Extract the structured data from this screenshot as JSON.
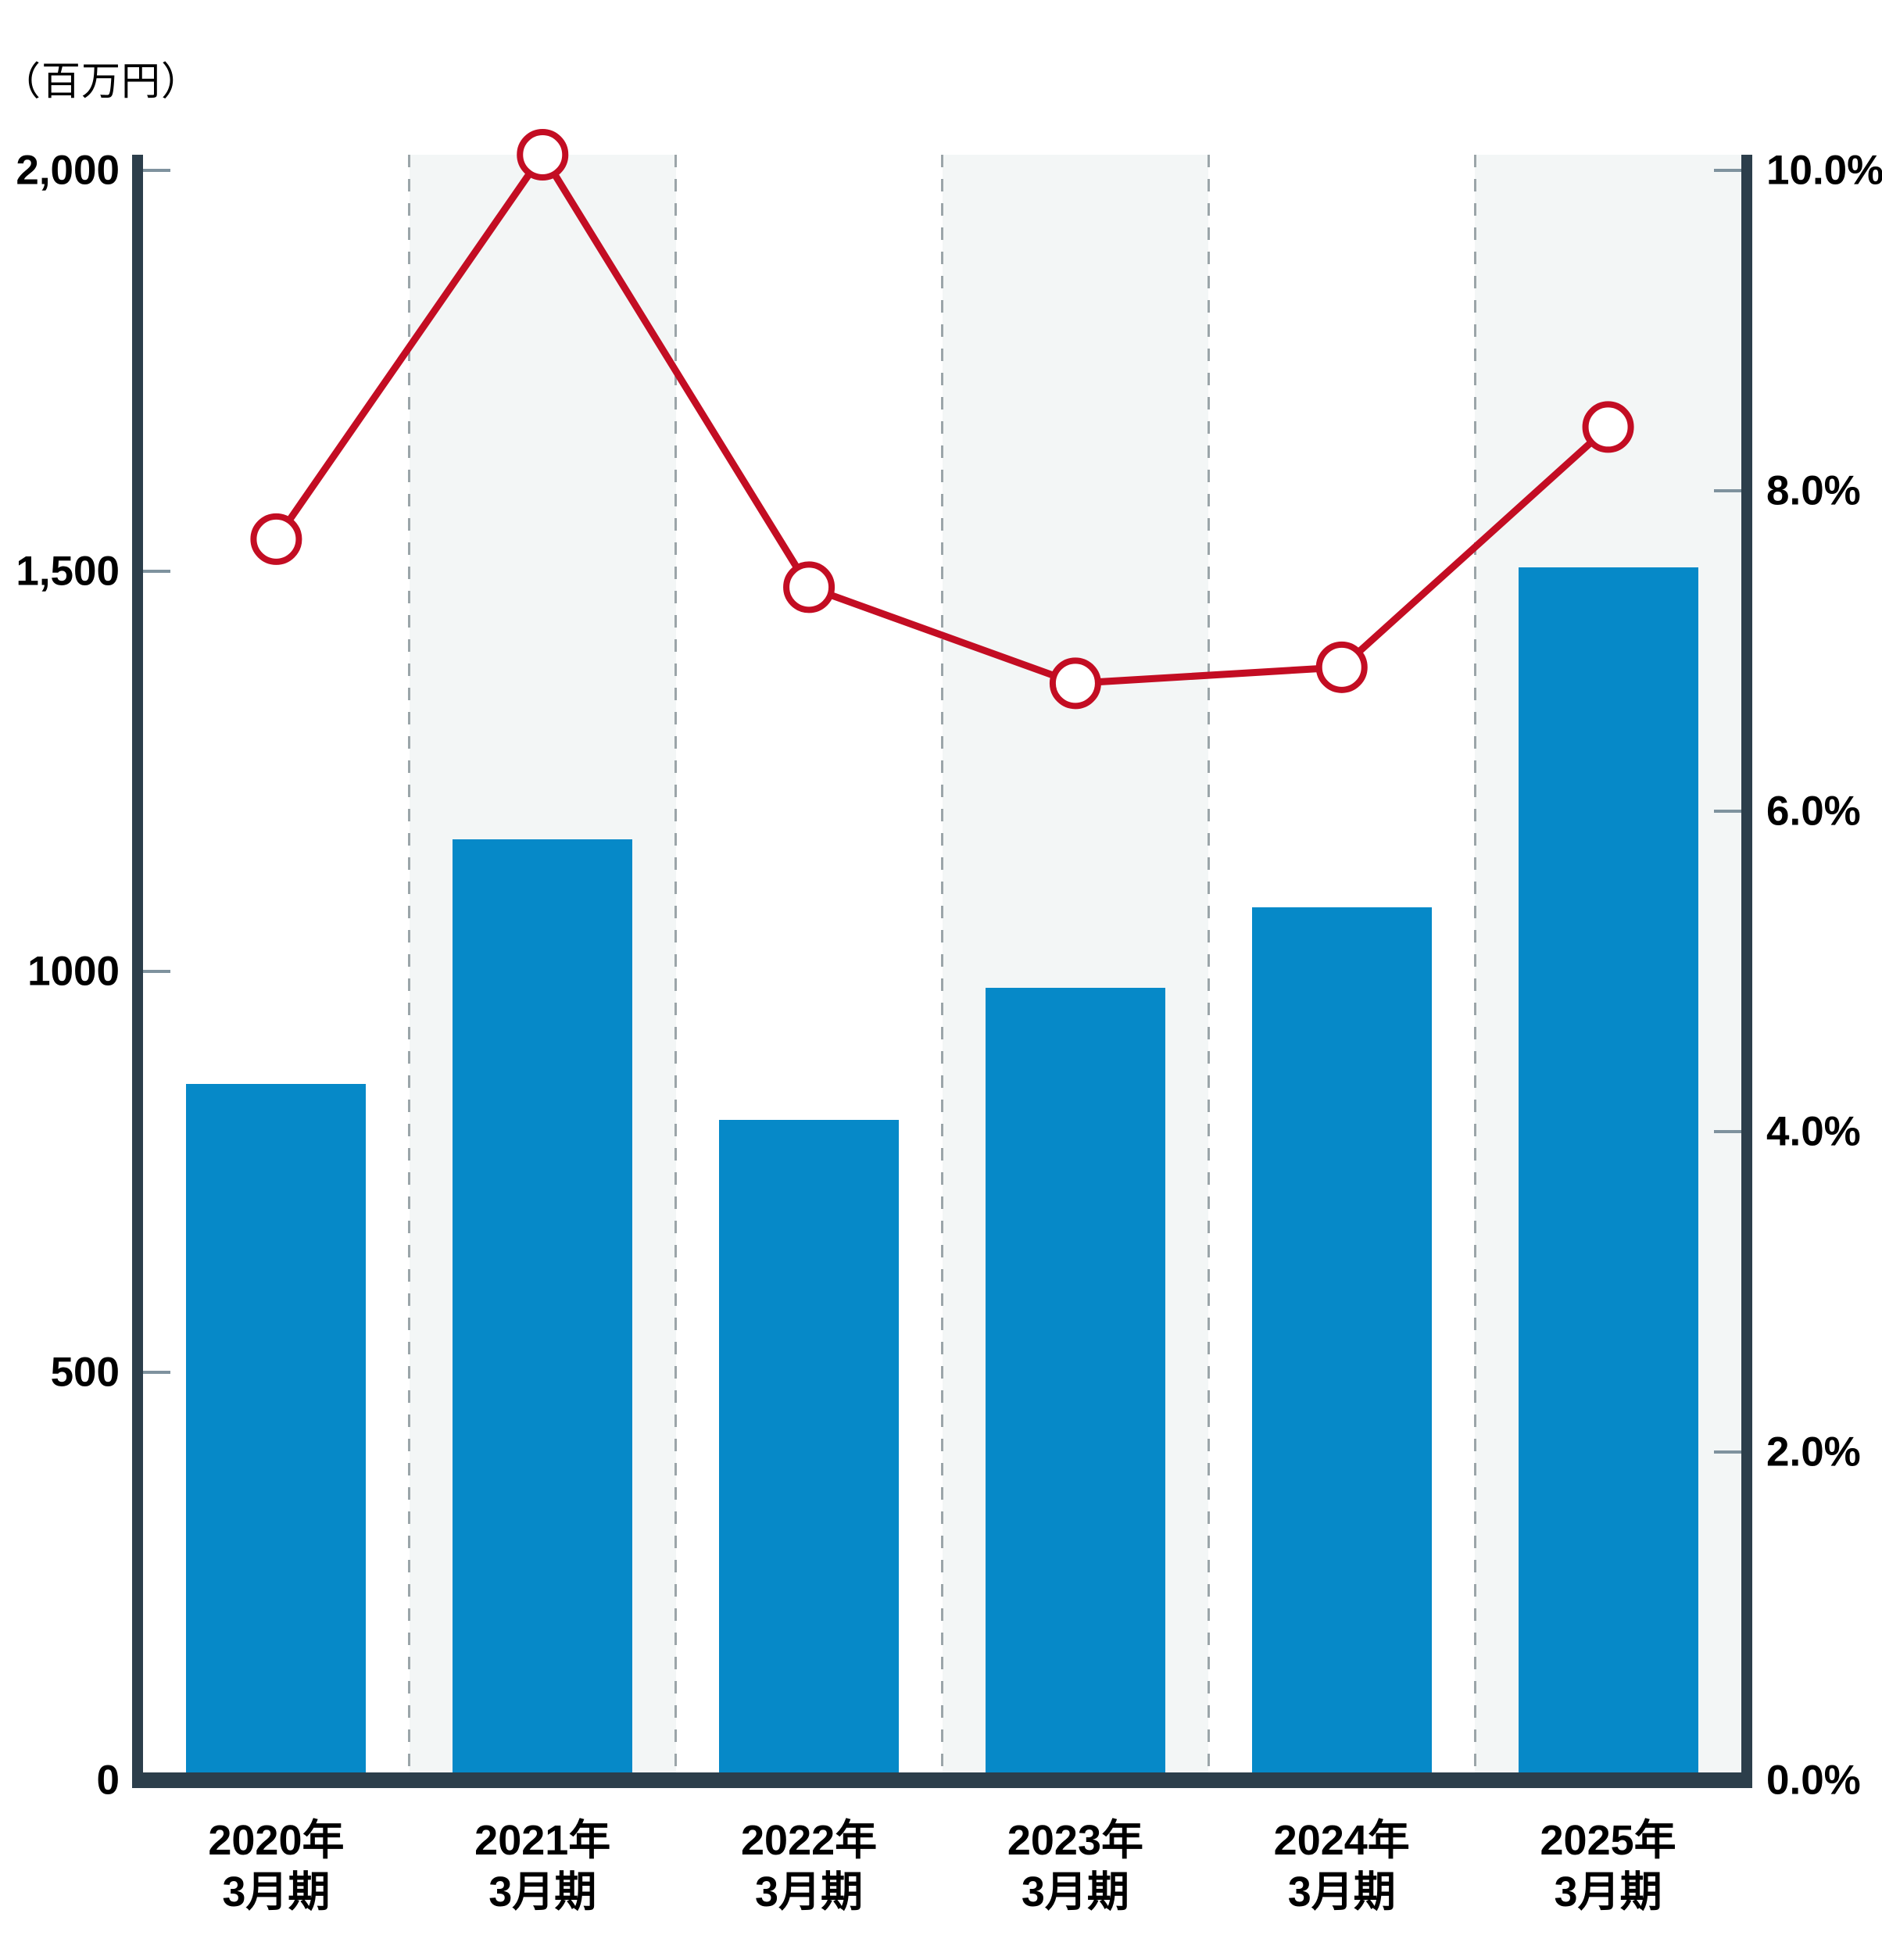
{
  "unit_label": "（百万円）",
  "chart_data": {
    "type": "bar+line",
    "title": "",
    "categories": [
      "2020年3月期",
      "2021年3月期",
      "2022年3月期",
      "2023年3月期",
      "2024年3月期",
      "2025年3月期"
    ],
    "category_label_lines": [
      [
        "2020年",
        "3月期"
      ],
      [
        "2021年",
        "3月期"
      ],
      [
        "2022年",
        "3月期"
      ],
      [
        "2023年",
        "3月期"
      ],
      [
        "2024年",
        "3月期"
      ],
      [
        "2025年",
        "3月期"
      ]
    ],
    "series": [
      {
        "name": "amount-bars",
        "type": "bar",
        "axis": "left",
        "unit": "百万円",
        "values": [
          860,
          1165,
          815,
          980,
          1080,
          1505
        ]
      },
      {
        "name": "ratio-line",
        "type": "line",
        "axis": "right",
        "unit": "%",
        "marker": "open-circle",
        "values": [
          7.7,
          10.1,
          7.4,
          6.8,
          6.9,
          8.4
        ]
      }
    ],
    "left_axis": {
      "unit": "百万円",
      "range": [
        0,
        2020
      ],
      "ticks": [
        {
          "value": 0,
          "label": "0"
        },
        {
          "value": 500,
          "label": "500"
        },
        {
          "value": 1000,
          "label": "1000"
        },
        {
          "value": 1500,
          "label": "1,500"
        },
        {
          "value": 2000,
          "label": "2,000"
        }
      ]
    },
    "right_axis": {
      "unit": "%",
      "range": [
        0,
        10.1
      ],
      "ticks": [
        {
          "value": 0,
          "label": "0.0%"
        },
        {
          "value": 2,
          "label": "2.0%"
        },
        {
          "value": 4,
          "label": "4.0%"
        },
        {
          "value": 6,
          "label": "6.0%"
        },
        {
          "value": 8,
          "label": "8.0%"
        },
        {
          "value": 10,
          "label": "10.0%"
        }
      ]
    },
    "grid": {
      "vertical_dashed_boundaries": true,
      "shaded_column_indexes": [
        1,
        3,
        5
      ],
      "legend": "none"
    }
  },
  "colors": {
    "bar_blue": "#0689C8",
    "line_red": "#C30D23",
    "band_gray": "#F3F6F6",
    "axis_dark": "#2C3E4B",
    "tick_gray": "#7E929E",
    "dash_gray": "#9BA5A9",
    "text_black": "#000000",
    "marker_fill": "#FFFFFF"
  }
}
